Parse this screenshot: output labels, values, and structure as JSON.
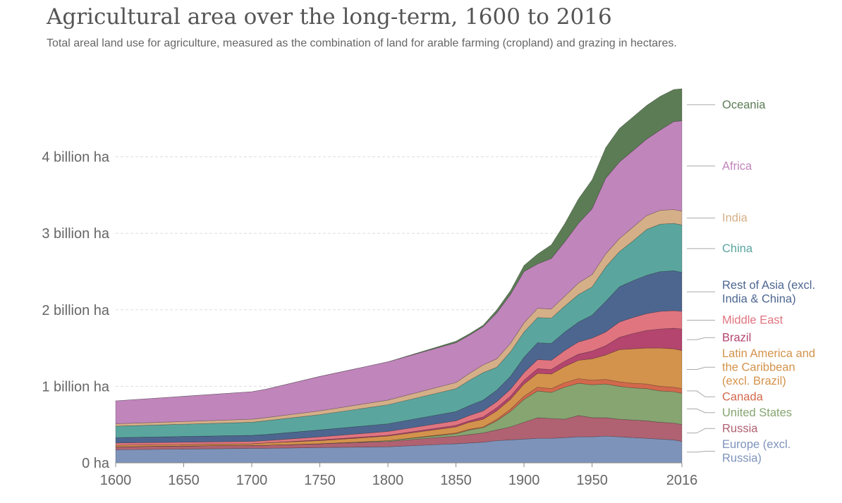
{
  "chart_data": {
    "type": "area",
    "stacked": true,
    "title": "Agricultural area over the long-term, 1600 to 2016",
    "subtitle": "Total areal land use for agriculture, measured as the combination of land for arable farming (cropland) and grazing in hectares.",
    "x_ticks": [
      {
        "value": 1600,
        "label": "1600"
      },
      {
        "value": 1650,
        "label": "1650"
      },
      {
        "value": 1700,
        "label": "1700"
      },
      {
        "value": 1750,
        "label": "1750"
      },
      {
        "value": 1800,
        "label": "1800"
      },
      {
        "value": 1850,
        "label": "1850"
      },
      {
        "value": 1900,
        "label": "1900"
      },
      {
        "value": 1950,
        "label": "1950"
      },
      {
        "value": 2016,
        "label": "2016"
      }
    ],
    "y_ticks": [
      {
        "value": 0,
        "label": "0 ha"
      },
      {
        "value": 1,
        "label": "1 billion ha"
      },
      {
        "value": 2,
        "label": "2 billion ha"
      },
      {
        "value": 3,
        "label": "3 billion ha"
      },
      {
        "value": 4,
        "label": "4 billion ha"
      }
    ],
    "xlim": [
      1600,
      2016
    ],
    "ylim": [
      0,
      4.9
    ],
    "y_unit": "billion ha",
    "x": [
      1600,
      1700,
      1710,
      1750,
      1800,
      1850,
      1860,
      1870,
      1880,
      1890,
      1900,
      1910,
      1920,
      1930,
      1940,
      1950,
      1960,
      1970,
      1980,
      1990,
      2000,
      2010,
      2016
    ],
    "series": [
      {
        "name": "Europe (excl. Russia)",
        "legend_lines": [
          "Europe (excl.",
          "Russia)"
        ],
        "color": "#7e93ba",
        "values": [
          0.17,
          0.19,
          0.19,
          0.2,
          0.21,
          0.25,
          0.26,
          0.27,
          0.29,
          0.3,
          0.31,
          0.32,
          0.32,
          0.33,
          0.34,
          0.34,
          0.35,
          0.34,
          0.33,
          0.32,
          0.31,
          0.3,
          0.28
        ]
      },
      {
        "name": "Russia",
        "legend_lines": [
          "Russia"
        ],
        "color": "#b06272",
        "values": [
          0.04,
          0.04,
          0.04,
          0.05,
          0.07,
          0.1,
          0.11,
          0.12,
          0.14,
          0.17,
          0.22,
          0.27,
          0.26,
          0.24,
          0.28,
          0.25,
          0.24,
          0.23,
          0.23,
          0.23,
          0.22,
          0.22,
          0.22
        ]
      },
      {
        "name": "United States",
        "legend_lines": [
          "United States"
        ],
        "color": "#86a571",
        "values": [
          0.0,
          0.0,
          0.0,
          0.0,
          0.01,
          0.03,
          0.06,
          0.07,
          0.12,
          0.2,
          0.3,
          0.35,
          0.34,
          0.42,
          0.42,
          0.43,
          0.44,
          0.43,
          0.42,
          0.42,
          0.41,
          0.41,
          0.41
        ]
      },
      {
        "name": "Canada",
        "legend_lines": [
          "Canada"
        ],
        "color": "#d2694c",
        "values": [
          0.0,
          0.0,
          0.0,
          0.0,
          0.0,
          0.01,
          0.01,
          0.01,
          0.02,
          0.03,
          0.04,
          0.05,
          0.05,
          0.06,
          0.06,
          0.06,
          0.06,
          0.06,
          0.06,
          0.06,
          0.06,
          0.06,
          0.06
        ]
      },
      {
        "name": "Latin America and the Caribbean (excl. Brazil)",
        "legend_lines": [
          "Latin America and",
          "the Caribbean",
          "(excl. Brazil)"
        ],
        "color": "#d4934c",
        "values": [
          0.02,
          0.02,
          0.03,
          0.04,
          0.06,
          0.08,
          0.09,
          0.1,
          0.11,
          0.13,
          0.16,
          0.18,
          0.19,
          0.21,
          0.24,
          0.28,
          0.32,
          0.42,
          0.45,
          0.47,
          0.5,
          0.5,
          0.5
        ]
      },
      {
        "name": "Brazil",
        "legend_lines": [
          "Brazil"
        ],
        "color": "#b3456e",
        "values": [
          0.0,
          0.0,
          0.0,
          0.01,
          0.01,
          0.02,
          0.02,
          0.03,
          0.04,
          0.04,
          0.05,
          0.06,
          0.06,
          0.07,
          0.08,
          0.1,
          0.12,
          0.16,
          0.2,
          0.23,
          0.25,
          0.27,
          0.28
        ]
      },
      {
        "name": "Middle East",
        "legend_lines": [
          "Middle East"
        ],
        "color": "#e07580",
        "values": [
          0.03,
          0.03,
          0.03,
          0.04,
          0.05,
          0.06,
          0.07,
          0.08,
          0.08,
          0.09,
          0.1,
          0.12,
          0.12,
          0.14,
          0.16,
          0.17,
          0.18,
          0.2,
          0.21,
          0.22,
          0.23,
          0.23,
          0.23
        ]
      },
      {
        "name": "Rest of Asia (excl. India & China)",
        "legend_lines": [
          "Rest of Asia (excl.",
          "India & China)"
        ],
        "color": "#4d6690",
        "values": [
          0.07,
          0.08,
          0.08,
          0.09,
          0.1,
          0.12,
          0.13,
          0.14,
          0.15,
          0.17,
          0.2,
          0.22,
          0.22,
          0.24,
          0.26,
          0.3,
          0.4,
          0.46,
          0.48,
          0.5,
          0.52,
          0.52,
          0.51
        ]
      },
      {
        "name": "China",
        "legend_lines": [
          "China"
        ],
        "color": "#5aa69e",
        "values": [
          0.15,
          0.17,
          0.18,
          0.2,
          0.25,
          0.3,
          0.33,
          0.36,
          0.3,
          0.32,
          0.33,
          0.33,
          0.33,
          0.34,
          0.36,
          0.37,
          0.45,
          0.46,
          0.52,
          0.6,
          0.62,
          0.62,
          0.62
        ]
      },
      {
        "name": "India",
        "legend_lines": [
          "India"
        ],
        "color": "#d5af88",
        "values": [
          0.03,
          0.04,
          0.04,
          0.05,
          0.06,
          0.08,
          0.09,
          0.1,
          0.11,
          0.11,
          0.12,
          0.12,
          0.12,
          0.13,
          0.15,
          0.16,
          0.17,
          0.17,
          0.18,
          0.18,
          0.18,
          0.18,
          0.18
        ]
      },
      {
        "name": "Africa",
        "legend_lines": [
          "Africa"
        ],
        "color": "#c085bb",
        "values": [
          0.3,
          0.36,
          0.37,
          0.45,
          0.5,
          0.52,
          0.5,
          0.5,
          0.6,
          0.64,
          0.67,
          0.58,
          0.66,
          0.71,
          0.78,
          0.86,
          0.99,
          1.0,
          1.0,
          1.0,
          1.05,
          1.15,
          1.18
        ]
      },
      {
        "name": "Oceania",
        "legend_lines": [
          "Oceania"
        ],
        "color": "#5c7c55",
        "values": [
          0.0,
          0.0,
          0.0,
          0.0,
          0.0,
          0.02,
          0.02,
          0.02,
          0.04,
          0.05,
          0.08,
          0.13,
          0.18,
          0.24,
          0.32,
          0.38,
          0.4,
          0.44,
          0.44,
          0.44,
          0.44,
          0.42,
          0.42
        ]
      }
    ]
  }
}
